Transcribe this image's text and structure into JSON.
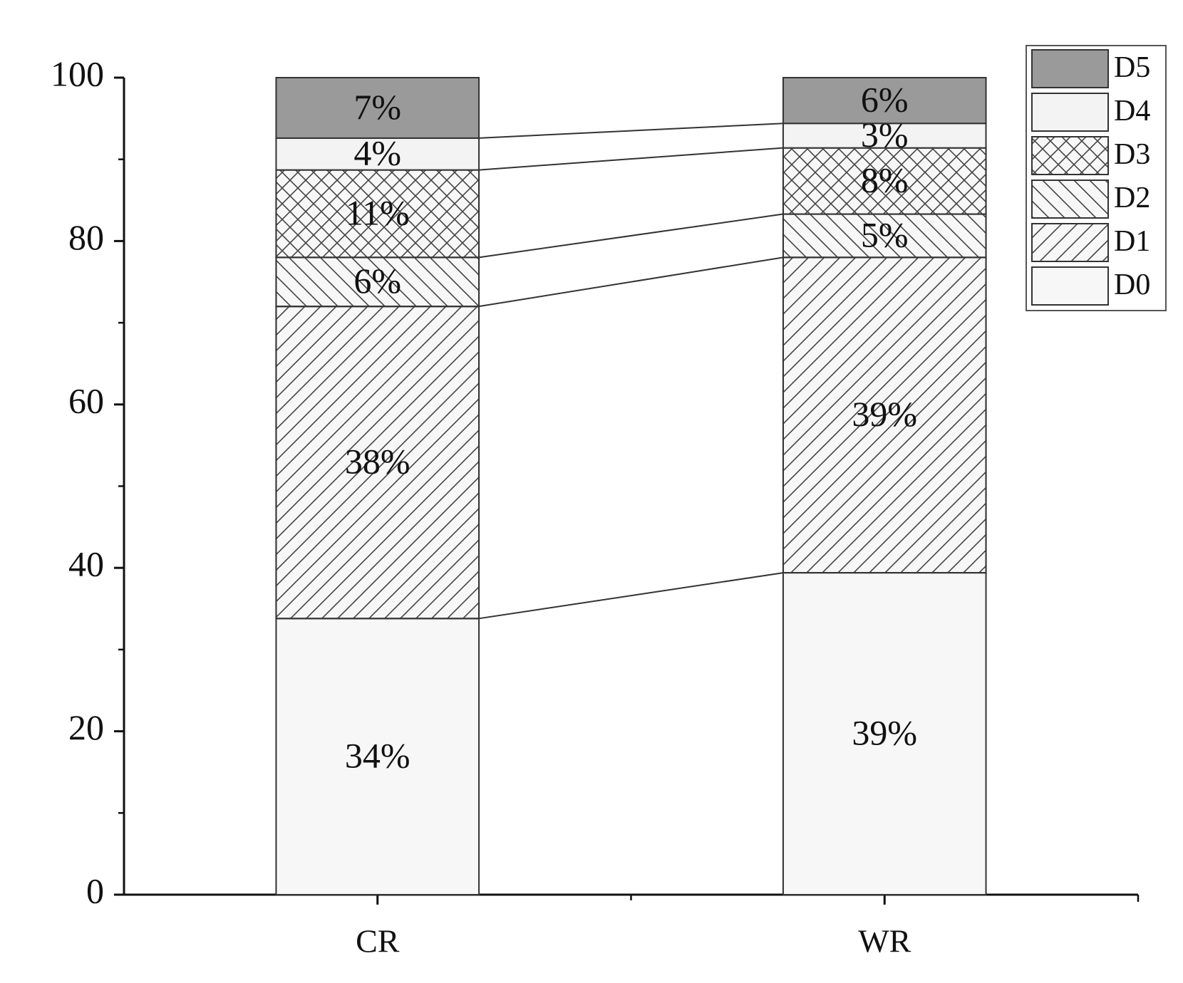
{
  "chart_data": {
    "type": "stacked_bar",
    "categories": [
      "CR",
      "WR"
    ],
    "series": [
      {
        "name": "D0",
        "color": "#f7f7f7",
        "pattern": "none",
        "values": [
          33.8,
          39.4
        ],
        "value_labels": [
          "34%",
          "39%"
        ]
      },
      {
        "name": "D1",
        "color": "#f7f7f7",
        "pattern": "/",
        "values": [
          38.2,
          38.6
        ],
        "value_labels": [
          "38%",
          "39%"
        ]
      },
      {
        "name": "D2",
        "color": "#f7f7f7",
        "pattern": "\\",
        "values": [
          6.0,
          5.3
        ],
        "value_labels": [
          "6%",
          "5%"
        ]
      },
      {
        "name": "D3",
        "color": "#f7f7f7",
        "pattern": "x",
        "values": [
          10.7,
          8.1
        ],
        "value_labels": [
          "11%",
          "8%"
        ]
      },
      {
        "name": "D4",
        "color": "#f3f3f3",
        "pattern": "none",
        "values": [
          3.9,
          3.0
        ],
        "value_labels": [
          "4%",
          "3%"
        ]
      },
      {
        "name": "D5",
        "color": "#9a9a9a",
        "pattern": "none",
        "values": [
          7.4,
          5.6
        ],
        "value_labels": [
          "7%",
          "6%"
        ]
      }
    ],
    "ylim": [
      0,
      100
    ],
    "yticks": [
      0,
      20,
      40,
      60,
      80,
      100
    ],
    "legend": "top-right"
  }
}
